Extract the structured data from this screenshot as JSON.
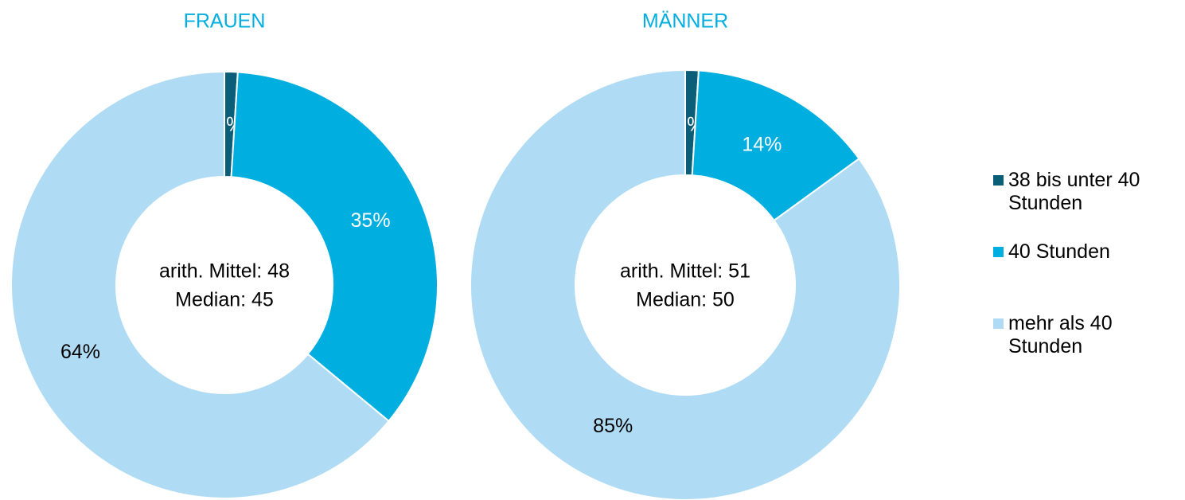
{
  "chart_data": [
    {
      "type": "donut",
      "title": "FRAUEN",
      "categories": [
        "38 bis unter 40 Stunden",
        "40 Stunden",
        "mehr als 40 Stunden"
      ],
      "values": [
        1,
        35,
        64
      ],
      "value_labels": [
        "1%",
        "35%",
        "64%"
      ],
      "colors": [
        "#0b5e78",
        "#00aedf",
        "#afdcf4"
      ],
      "annotations": [
        "arith. Mittel: 48",
        "Median: 45"
      ]
    },
    {
      "type": "donut",
      "title": "MÄNNER",
      "categories": [
        "38 bis unter 40 Stunden",
        "40 Stunden",
        "mehr als 40 Stunden"
      ],
      "values": [
        1,
        14,
        85
      ],
      "value_labels": [
        "1%",
        "14%",
        "85%"
      ],
      "colors": [
        "#0b5e78",
        "#00aedf",
        "#afdcf4"
      ],
      "annotations": [
        "arith. Mittel: 51",
        "Median: 50"
      ]
    }
  ]
}
